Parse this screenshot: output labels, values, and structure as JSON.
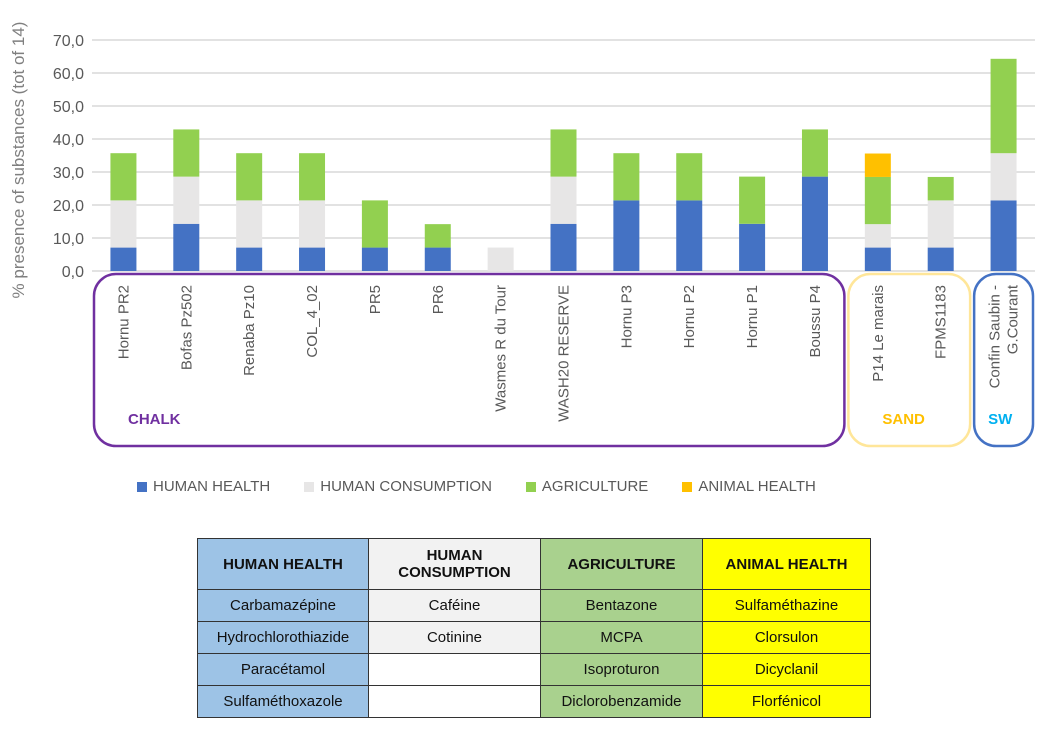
{
  "chart_data": {
    "type": "bar",
    "stacked": true,
    "title": "",
    "ylabel": "% presence of substances (tot of 14)",
    "xlabel": "",
    "ylim": [
      0,
      70
    ],
    "yticks": [
      "0,0",
      "10,0",
      "20,0",
      "30,0",
      "40,0",
      "50,0",
      "60,0",
      "70,0"
    ],
    "grid": true,
    "legend_position": "bottom",
    "categories": [
      "Hornu PR2",
      "Bofas Pz502",
      "Renaba Pz10",
      "COL_4_02",
      "PR5",
      "PR6",
      "Wasmes R du Tour",
      "WASH20 RESERVE",
      "Hornu P3",
      "Hornu P2",
      "Hornu P1",
      "Boussu P4",
      "P14 Le marais",
      "FPMS1183",
      "Confin Saubin - G.Courant"
    ],
    "series": [
      {
        "name": "HUMAN HEALTH",
        "color": "#4472c4",
        "values": [
          7.1,
          14.3,
          7.1,
          7.1,
          7.1,
          7.1,
          0,
          14.3,
          21.4,
          21.4,
          14.3,
          28.6,
          7.1,
          7.1,
          21.4
        ]
      },
      {
        "name": "HUMAN CONSUMPTION",
        "color": "#e7e6e6",
        "values": [
          14.3,
          14.3,
          14.3,
          14.3,
          0,
          0,
          7.1,
          14.3,
          0,
          0,
          0,
          0,
          7.1,
          14.3,
          14.3
        ]
      },
      {
        "name": "AGRICULTURE",
        "color": "#92d050",
        "values": [
          14.3,
          14.3,
          14.3,
          14.3,
          14.3,
          7.1,
          0,
          14.3,
          14.3,
          14.3,
          14.3,
          14.3,
          14.3,
          7.1,
          28.6
        ]
      },
      {
        "name": "ANIMAL HEALTH",
        "color": "#ffc000",
        "values": [
          0,
          0,
          0,
          0,
          0,
          0,
          0,
          0,
          0,
          0,
          0,
          0,
          7.1,
          0,
          0
        ]
      }
    ],
    "groups": [
      {
        "label": "CHALK",
        "color": "#7030a0",
        "label_color": "#7030a0",
        "from": 0,
        "to": 11
      },
      {
        "label": "SAND",
        "color": "#ffe699",
        "label_color": "#ffc000",
        "from": 12,
        "to": 13
      },
      {
        "label": "SW",
        "color": "#4472c4",
        "label_color": "#00b0f0",
        "from": 14,
        "to": 14
      }
    ]
  },
  "table": {
    "headers": [
      "HUMAN HEALTH",
      "HUMAN CONSUMPTION",
      "AGRICULTURE",
      "ANIMAL HEALTH"
    ],
    "colors": [
      "#9dc3e6",
      "#f2f2f2",
      "#a9d18e",
      "#ffff00"
    ],
    "rows": [
      [
        "Carbamazépine",
        "Caféine",
        "Bentazone",
        "Sulfaméthazine"
      ],
      [
        "Hydrochlorothiazide",
        "Cotinine",
        "MCPA",
        "Clorsulon"
      ],
      [
        "Paracétamol",
        "",
        "Isoproturon",
        "Dicyclanil"
      ],
      [
        "Sulfaméthoxazole",
        "",
        "Diclorobenzamide",
        "Florfénicol"
      ]
    ]
  }
}
